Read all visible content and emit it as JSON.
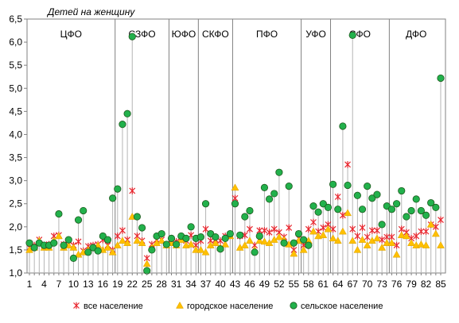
{
  "chart_data": {
    "type": "scatter",
    "title": "Детей на женщину",
    "xlabel": "",
    "ylabel": "",
    "ylim": [
      1.0,
      6.5
    ],
    "yticks": [
      "1,0",
      "1,5",
      "2,0",
      "2,5",
      "3,0",
      "3,5",
      "4,0",
      "4,5",
      "5,0",
      "5,5",
      "6,0",
      "6,5"
    ],
    "xlim": [
      1,
      85
    ],
    "xticks": [
      "1",
      "4",
      "7",
      "10",
      "13",
      "16",
      "19",
      "22",
      "25",
      "28",
      "31",
      "34",
      "37",
      "40",
      "43",
      "46",
      "49",
      "52",
      "55",
      "58",
      "61",
      "64",
      "67",
      "70",
      "73",
      "76",
      "79",
      "82",
      "85"
    ],
    "grid": false,
    "legend_position": "bottom",
    "districts": [
      {
        "name": "ЦФО",
        "start": 1,
        "end": 18
      },
      {
        "name": "СЗФО",
        "start": 19,
        "end": 29
      },
      {
        "name": "ЮФО",
        "start": 30,
        "end": 35
      },
      {
        "name": "СКФО",
        "start": 36,
        "end": 42
      },
      {
        "name": "ПФО",
        "start": 43,
        "end": 56
      },
      {
        "name": "УФО",
        "start": 57,
        "end": 62
      },
      {
        "name": "СФО",
        "start": 63,
        "end": 74
      },
      {
        "name": "ДФО",
        "start": 75,
        "end": 85
      }
    ],
    "series": [
      {
        "name": "все население",
        "color": "#e8262e",
        "marker": "star",
        "values": [
          1.55,
          1.6,
          1.72,
          1.6,
          1.62,
          1.8,
          1.82,
          1.62,
          1.7,
          1.6,
          1.68,
          1.48,
          1.58,
          1.6,
          1.62,
          1.72,
          1.6,
          1.5,
          1.8,
          1.92,
          1.72,
          2.78,
          1.8,
          1.7,
          1.32,
          1.62,
          1.72,
          1.72,
          1.62,
          1.72,
          1.68,
          1.75,
          1.7,
          1.82,
          1.6,
          1.7,
          1.95,
          1.7,
          1.72,
          1.7,
          1.8,
          1.82,
          2.62,
          1.8,
          1.82,
          1.95,
          1.6,
          1.92,
          1.92,
          1.88,
          1.95,
          1.88,
          1.78,
          1.98,
          1.5,
          1.75,
          1.6,
          1.95,
          2.1,
          1.9,
          1.98,
          2.05,
          1.95,
          2.65,
          2.25,
          3.35,
          1.95,
          1.8,
          1.98,
          1.78,
          1.92,
          1.92,
          1.72,
          1.78,
          1.78,
          1.6,
          1.95,
          1.88,
          1.75,
          1.8,
          1.9,
          1.9,
          2.05,
          2.0,
          2.15
        ]
      },
      {
        "name": "городское население",
        "color": "#ffc000",
        "marker": "triangle",
        "values": [
          1.5,
          1.55,
          1.7,
          1.55,
          1.55,
          1.7,
          1.8,
          1.55,
          1.6,
          1.55,
          1.4,
          1.45,
          1.5,
          1.55,
          1.6,
          1.5,
          1.55,
          1.45,
          1.6,
          1.7,
          1.65,
          2.22,
          1.7,
          1.65,
          1.2,
          1.55,
          1.65,
          1.7,
          1.6,
          1.65,
          1.6,
          1.72,
          1.6,
          1.62,
          1.5,
          1.5,
          1.45,
          1.6,
          1.65,
          1.55,
          1.62,
          1.8,
          2.85,
          1.55,
          1.6,
          1.7,
          1.5,
          1.7,
          1.68,
          1.65,
          1.72,
          1.78,
          1.72,
          1.62,
          1.42,
          1.7,
          1.5,
          1.7,
          1.9,
          1.8,
          1.82,
          1.95,
          1.75,
          1.7,
          1.9,
          2.3,
          1.7,
          1.5,
          1.72,
          1.6,
          1.7,
          1.75,
          1.55,
          1.65,
          1.65,
          1.4,
          1.82,
          1.8,
          1.65,
          1.6,
          1.62,
          1.6,
          2.05,
          1.85,
          1.6
        ]
      },
      {
        "name": "сельское население",
        "color": "#22b14c",
        "marker": "circle",
        "values": [
          1.65,
          1.55,
          1.65,
          1.6,
          1.6,
          1.65,
          2.28,
          1.6,
          1.72,
          1.32,
          2.15,
          2.35,
          1.45,
          1.55,
          1.48,
          1.8,
          1.72,
          2.62,
          2.82,
          4.22,
          4.45,
          6.12,
          2.22,
          1.98,
          1.05,
          1.5,
          1.8,
          1.85,
          1.62,
          1.75,
          1.62,
          1.8,
          1.75,
          2.0,
          1.75,
          1.78,
          2.5,
          1.85,
          1.78,
          1.52,
          1.75,
          1.85,
          2.5,
          1.82,
          2.22,
          2.35,
          1.45,
          1.8,
          2.85,
          2.6,
          2.72,
          3.18,
          1.65,
          2.88,
          1.65,
          1.85,
          1.72,
          1.6,
          2.45,
          2.32,
          2.5,
          2.42,
          2.92,
          2.38,
          4.18,
          2.9,
          6.15,
          2.68,
          2.38,
          2.88,
          2.62,
          2.7,
          2.05,
          2.45,
          2.38,
          2.5,
          2.78,
          2.22,
          2.35,
          2.6,
          2.35,
          2.25,
          2.52,
          2.42,
          5.22
        ]
      }
    ]
  }
}
